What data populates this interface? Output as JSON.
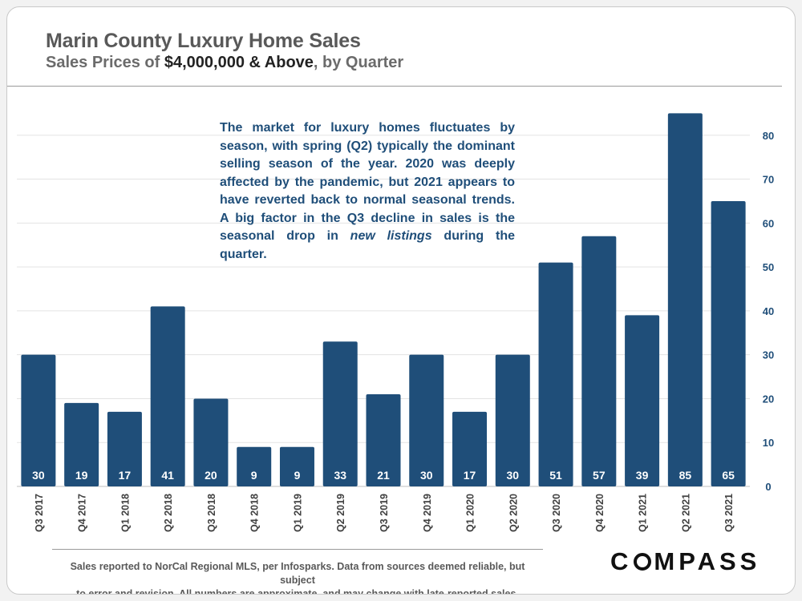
{
  "header": {
    "title": "Marin County Luxury Home Sales",
    "subtitle_prefix": "Sales Prices of ",
    "subtitle_emph": "$4,000,000 & Above",
    "subtitle_suffix": ", by Quarter"
  },
  "annotation": {
    "text_part1": "The market for luxury homes fluctuates by season, with spring (Q2) typically the dominant selling season of the year. 2020 was deeply affected by the pandemic, but 2021 appears to have reverted back to normal seasonal trends. A big factor in the Q3 decline in sales is the seasonal drop in ",
    "text_italic": "new listings",
    "text_part2": " during the quarter."
  },
  "footer": {
    "line1": "Sales reported to NorCal Regional MLS, per Infosparks. Data from sources deemed reliable, but subject",
    "line2": "to error and revision. All numbers are approximate, and may change with late-reported sales."
  },
  "logo": {
    "text_before": "C",
    "text_after": "MPASS"
  },
  "colors": {
    "bar": "#1f4e79",
    "axis_text": "#1f4e79",
    "grid": "#e3e3e3",
    "label_text": "#ffffff"
  },
  "chart_data": {
    "type": "bar",
    "categories": [
      "Q3 2017",
      "Q4 2017",
      "Q1 2018",
      "Q2 2018",
      "Q3 2018",
      "Q4 2018",
      "Q1 2019",
      "Q2 2019",
      "Q3 2019",
      "Q4 2019",
      "Q1 2020",
      "Q2 2020",
      "Q3 2020",
      "Q4 2020",
      "Q1 2021",
      "Q2 2021",
      "Q3 2021"
    ],
    "values": [
      30,
      19,
      17,
      41,
      20,
      9,
      9,
      33,
      21,
      30,
      17,
      30,
      51,
      57,
      39,
      85,
      65
    ],
    "title": "Marin County Luxury Home Sales",
    "xlabel": "",
    "ylabel": "",
    "ylim": [
      0,
      90
    ],
    "yticks": [
      0,
      10,
      20,
      30,
      40,
      50,
      60,
      70,
      80
    ],
    "y_axis_position": "right",
    "grid": true,
    "data_labels": "inside-bottom"
  }
}
